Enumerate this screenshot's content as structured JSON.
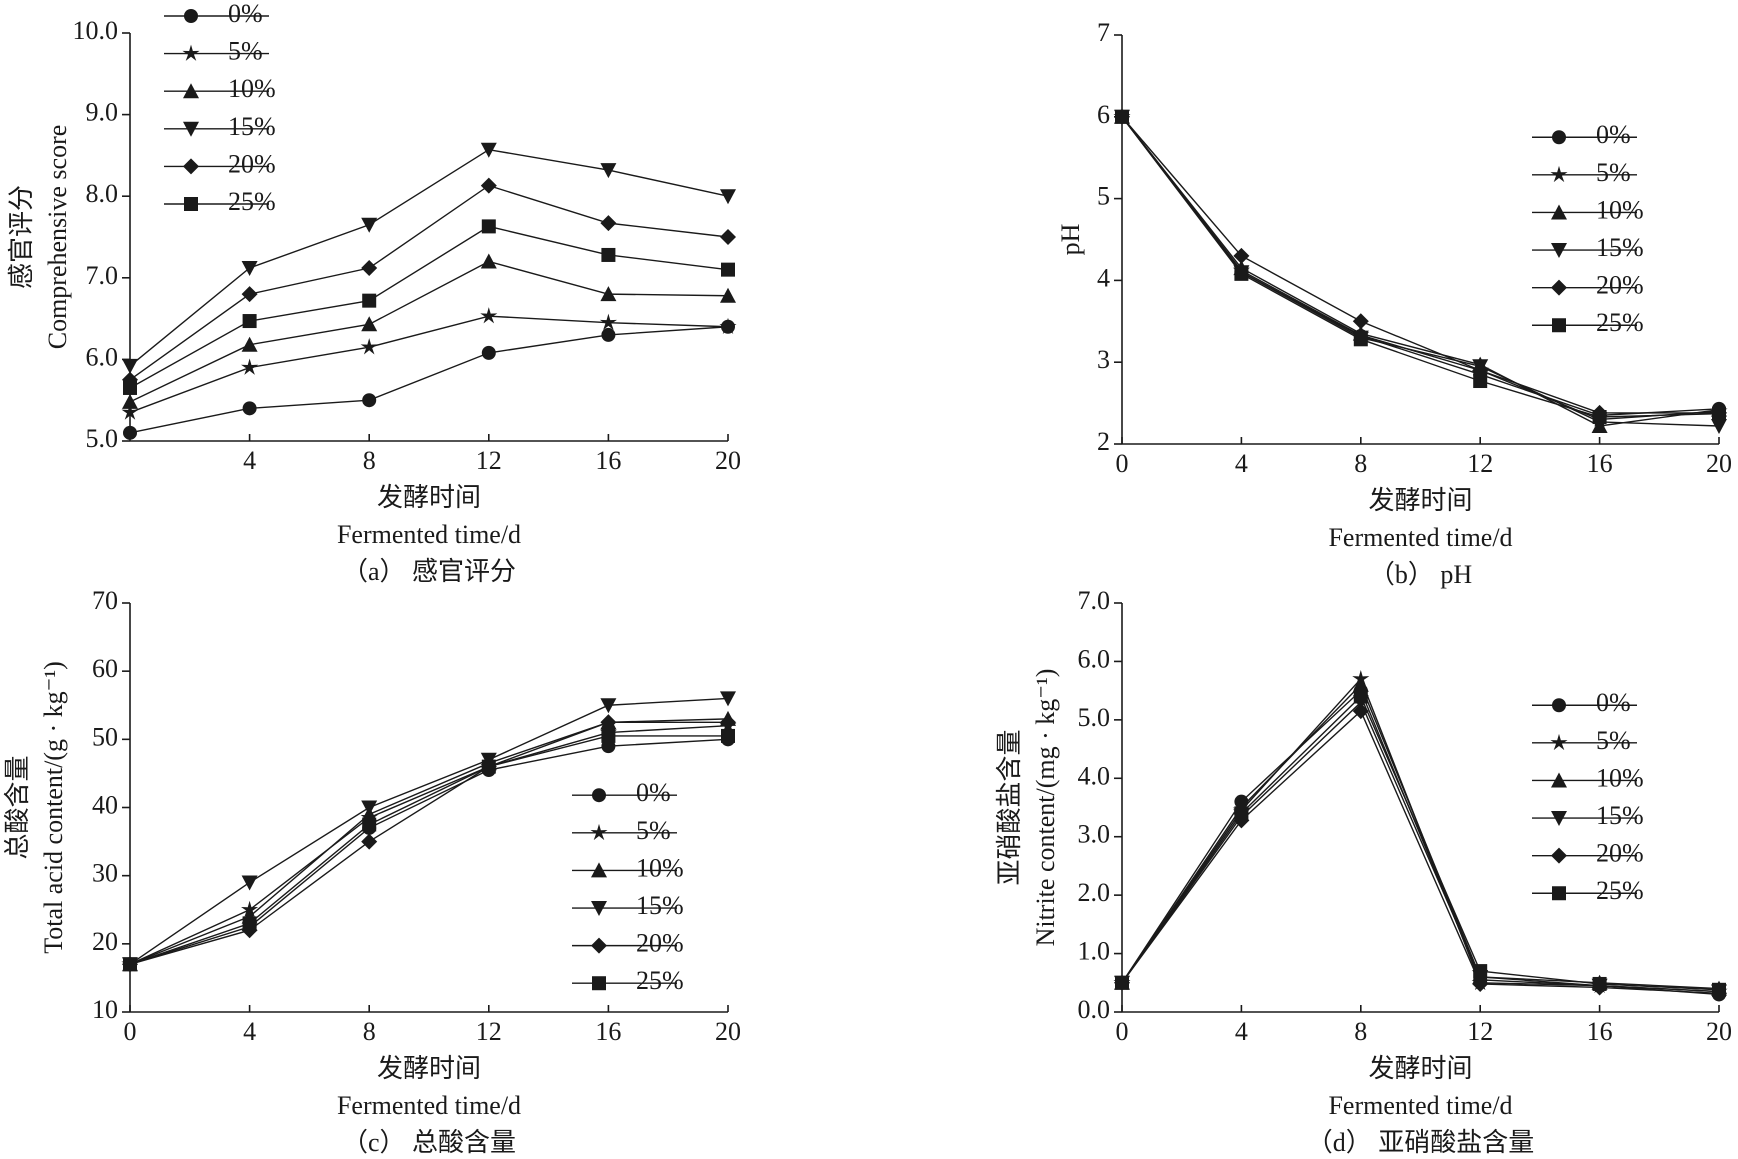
{
  "chart_data": [
    {
      "type": "line",
      "caption": "（a） 感官评分",
      "xlabel": [
        "发酵时间",
        "Fermented time/d"
      ],
      "ylabel": [
        "感官评分",
        "Comprehensive score"
      ],
      "x": [
        0,
        4,
        8,
        12,
        16,
        20
      ],
      "xlim": [
        0,
        20
      ],
      "xticks": [
        4,
        8,
        12,
        16,
        20
      ],
      "ylim": [
        5,
        10
      ],
      "yticks": [
        {
          "value": 5,
          "label": "5.0"
        },
        {
          "value": 6,
          "label": "6.0"
        },
        {
          "value": 7,
          "label": "7.0"
        },
        {
          "value": 8,
          "label": "8.0"
        },
        {
          "value": 9,
          "label": "9.0"
        },
        {
          "value": 10,
          "label": "10.0"
        }
      ],
      "legend_position": "upper left",
      "series": [
        {
          "name": "0%",
          "marker": "circle",
          "color": "#1a1a1a",
          "values": [
            5.1,
            5.4,
            5.5,
            6.08,
            6.3,
            6.4
          ]
        },
        {
          "name": "5%",
          "marker": "star",
          "color": "#1a1a1a",
          "values": [
            5.35,
            5.9,
            6.15,
            6.53,
            6.45,
            6.4
          ]
        },
        {
          "name": "10%",
          "marker": "triangle-up",
          "color": "#1a1a1a",
          "values": [
            5.48,
            6.18,
            6.43,
            7.2,
            6.8,
            6.78
          ]
        },
        {
          "name": "15%",
          "marker": "triangle-down",
          "color": "#1a1a1a",
          "values": [
            5.92,
            7.12,
            7.65,
            8.57,
            8.32,
            8.0
          ]
        },
        {
          "name": "20%",
          "marker": "diamond",
          "color": "#1a1a1a",
          "values": [
            5.75,
            6.8,
            7.12,
            8.13,
            7.67,
            7.5
          ]
        },
        {
          "name": "25%",
          "marker": "square",
          "color": "#1a1a1a",
          "values": [
            5.65,
            6.47,
            6.72,
            7.63,
            7.28,
            7.1
          ]
        }
      ]
    },
    {
      "type": "line",
      "caption": "（b） pH",
      "xlabel": [
        "发酵时间",
        "Fermented time/d"
      ],
      "ylabel": [
        "pH"
      ],
      "x": [
        0,
        4,
        8,
        12,
        16,
        20
      ],
      "xlim": [
        0,
        20
      ],
      "xticks": [
        0,
        4,
        8,
        12,
        16,
        20
      ],
      "ylim": [
        2,
        7
      ],
      "yticks": [
        2,
        3,
        4,
        5,
        6,
        7
      ],
      "legend_position": "center right",
      "series": [
        {
          "name": "0%",
          "marker": "circle",
          "color": "#1a1a1a",
          "values": [
            6.0,
            4.1,
            3.32,
            2.85,
            2.35,
            2.43
          ]
        },
        {
          "name": "5%",
          "marker": "star",
          "color": "#1a1a1a",
          "values": [
            6.0,
            4.12,
            3.33,
            2.9,
            2.3,
            2.4
          ]
        },
        {
          "name": "10%",
          "marker": "triangle-up",
          "color": "#1a1a1a",
          "values": [
            6.0,
            4.15,
            3.35,
            2.97,
            2.22,
            2.42
          ]
        },
        {
          "name": "15%",
          "marker": "triangle-down",
          "color": "#1a1a1a",
          "values": [
            6.0,
            4.1,
            3.3,
            2.95,
            2.27,
            2.22
          ]
        },
        {
          "name": "20%",
          "marker": "diamond",
          "color": "#1a1a1a",
          "values": [
            6.0,
            4.3,
            3.5,
            2.9,
            2.38,
            2.38
          ]
        },
        {
          "name": "25%",
          "marker": "square",
          "color": "#1a1a1a",
          "values": [
            6.0,
            4.08,
            3.28,
            2.77,
            2.33,
            2.37
          ]
        }
      ]
    },
    {
      "type": "line",
      "caption": "（c） 总酸含量",
      "xlabel": [
        "发酵时间",
        "Fermented time/d"
      ],
      "ylabel": [
        "总酸含量",
        "Total acid content/(g · kg⁻¹)"
      ],
      "x": [
        0,
        4,
        8,
        12,
        16,
        20
      ],
      "xlim": [
        0,
        20
      ],
      "xticks": [
        0,
        4,
        8,
        12,
        16,
        20
      ],
      "ylim": [
        10,
        70
      ],
      "yticks": [
        10,
        20,
        30,
        40,
        50,
        60,
        70
      ],
      "legend_position": "lower right",
      "series": [
        {
          "name": "0%",
          "marker": "circle",
          "color": "#1a1a1a",
          "values": [
            17,
            22.5,
            37,
            45.5,
            49,
            50
          ]
        },
        {
          "name": "5%",
          "marker": "star",
          "color": "#1a1a1a",
          "values": [
            17,
            25,
            38.5,
            46,
            51,
            52
          ]
        },
        {
          "name": "10%",
          "marker": "triangle-up",
          "color": "#1a1a1a",
          "values": [
            17,
            24,
            39,
            46.5,
            52.5,
            53
          ]
        },
        {
          "name": "15%",
          "marker": "triangle-down",
          "color": "#1a1a1a",
          "values": [
            17,
            29,
            40,
            47,
            55,
            56
          ]
        },
        {
          "name": "20%",
          "marker": "diamond",
          "color": "#1a1a1a",
          "values": [
            17,
            22,
            35,
            46,
            52.5,
            52.5
          ]
        },
        {
          "name": "25%",
          "marker": "square",
          "color": "#1a1a1a",
          "values": [
            17,
            23,
            37.5,
            46,
            50.5,
            50.5
          ]
        }
      ]
    },
    {
      "type": "line",
      "caption": "（d） 亚硝酸盐含量",
      "xlabel": [
        "发酵时间",
        "Fermented time/d"
      ],
      "ylabel": [
        "亚硝酸盐含量",
        "Nitrite content/(mg · kg⁻¹)"
      ],
      "x": [
        0,
        4,
        8,
        12,
        16,
        20
      ],
      "xlim": [
        0,
        20
      ],
      "xticks": [
        0,
        4,
        8,
        12,
        16,
        20
      ],
      "ylim": [
        0,
        7
      ],
      "yticks": [
        {
          "value": 0,
          "label": "0.0"
        },
        {
          "value": 1,
          "label": "1.0"
        },
        {
          "value": 2,
          "label": "2.0"
        },
        {
          "value": 3,
          "label": "3.0"
        },
        {
          "value": 4,
          "label": "4.0"
        },
        {
          "value": 5,
          "label": "5.0"
        },
        {
          "value": 6,
          "label": "6.0"
        },
        {
          "value": 7,
          "label": "7.0"
        }
      ],
      "legend_position": "center right",
      "series": [
        {
          "name": "0%",
          "marker": "circle",
          "color": "#1a1a1a",
          "values": [
            0.5,
            3.6,
            5.5,
            0.55,
            0.45,
            0.3
          ]
        },
        {
          "name": "5%",
          "marker": "star",
          "color": "#1a1a1a",
          "values": [
            0.5,
            3.45,
            5.7,
            0.5,
            0.45,
            0.35
          ]
        },
        {
          "name": "10%",
          "marker": "triangle-up",
          "color": "#1a1a1a",
          "values": [
            0.5,
            3.5,
            5.6,
            0.6,
            0.5,
            0.4
          ]
        },
        {
          "name": "15%",
          "marker": "triangle-down",
          "color": "#1a1a1a",
          "values": [
            0.5,
            3.35,
            5.3,
            0.6,
            0.45,
            0.35
          ]
        },
        {
          "name": "20%",
          "marker": "diamond",
          "color": "#1a1a1a",
          "values": [
            0.5,
            3.28,
            5.15,
            0.48,
            0.42,
            0.32
          ]
        },
        {
          "name": "25%",
          "marker": "square",
          "color": "#1a1a1a",
          "values": [
            0.5,
            3.4,
            5.4,
            0.7,
            0.48,
            0.38
          ]
        }
      ]
    }
  ]
}
